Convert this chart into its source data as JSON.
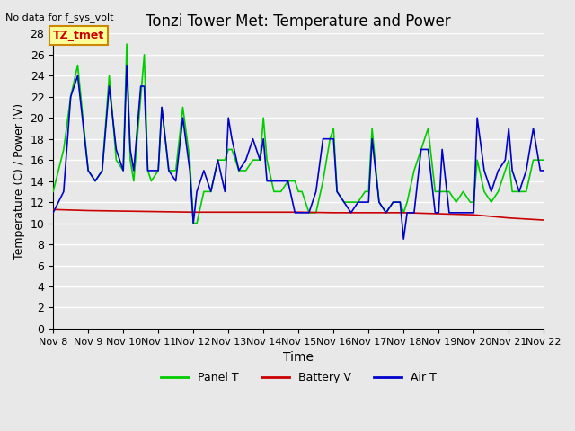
{
  "title": "Tonzi Tower Met: Temperature and Power",
  "top_left_text": "No data for f_sys_volt",
  "xlabel": "Time",
  "ylabel": "Temperature (C) / Power (V)",
  "ylim": [
    0,
    28
  ],
  "yticks": [
    0,
    2,
    4,
    6,
    8,
    10,
    12,
    14,
    16,
    18,
    20,
    22,
    24,
    26,
    28
  ],
  "xtick_labels": [
    "Nov 8",
    "Nov 9",
    "Nov 10",
    "Nov 11",
    "Nov 12",
    "Nov 13",
    "Nov 14",
    "Nov 15",
    "Nov 16",
    "Nov 17",
    "Nov 18",
    "Nov 19",
    "Nov 20",
    "Nov 21",
    "Nov 22"
  ],
  "background_color": "#e8e8e8",
  "plot_bg_color": "#e8e8e8",
  "grid_color": "#ffffff",
  "legend_label_box": "TZ_tmet",
  "legend_box_color": "#ffff99",
  "legend_box_border": "#cc8800",
  "line_panel_color": "#00cc00",
  "line_battery_color": "#cc0000",
  "line_air_color": "#0000cc",
  "line_width": 1.2,
  "panel_T_x": [
    8,
    8.3,
    8.5,
    8.7,
    9.0,
    9.2,
    9.4,
    9.6,
    9.8,
    10.0,
    10.1,
    10.2,
    10.3,
    10.5,
    10.6,
    10.7,
    10.8,
    11.0,
    11.1,
    11.3,
    11.5,
    11.7,
    11.9,
    12.0,
    12.1,
    12.3,
    12.5,
    12.7,
    12.9,
    13.0,
    13.1,
    13.3,
    13.5,
    13.7,
    13.9,
    14.0,
    14.1,
    14.3,
    14.5,
    14.7,
    14.9,
    15.0,
    15.1,
    15.3,
    15.5,
    15.7,
    15.9,
    16.0,
    16.1,
    16.3,
    16.5,
    16.7,
    16.9,
    17.0,
    17.1,
    17.3,
    17.5,
    17.7,
    17.9,
    18.0,
    18.1,
    18.3,
    18.5,
    18.7,
    18.9,
    19.0,
    19.1,
    19.3,
    19.5,
    19.7,
    19.9,
    20.0,
    20.1,
    20.3,
    20.5,
    20.7,
    20.9,
    21.0,
    21.1,
    21.3,
    21.5,
    21.7,
    21.9,
    22.0
  ],
  "panel_T_y": [
    13,
    17,
    22,
    25,
    15,
    14,
    15,
    24,
    16,
    15,
    27,
    16,
    14,
    22,
    26,
    15,
    14,
    15,
    21,
    15,
    15,
    21,
    16,
    10,
    10,
    13,
    13,
    16,
    16,
    17,
    17,
    15,
    15,
    16,
    16,
    20,
    16,
    13,
    13,
    14,
    14,
    13,
    13,
    11,
    11,
    14,
    18,
    19,
    13,
    12,
    12,
    12,
    13,
    13,
    19,
    12,
    11,
    12,
    12,
    11,
    12,
    15,
    17,
    19,
    13,
    13,
    13,
    13,
    12,
    13,
    12,
    12,
    16,
    13,
    12,
    13,
    15,
    16,
    13,
    13,
    13,
    16,
    16,
    16
  ],
  "air_T_x": [
    8,
    8.3,
    8.5,
    8.7,
    9.0,
    9.2,
    9.4,
    9.6,
    9.8,
    10.0,
    10.1,
    10.2,
    10.3,
    10.5,
    10.6,
    10.7,
    10.8,
    11.0,
    11.1,
    11.3,
    11.5,
    11.7,
    11.9,
    12.0,
    12.1,
    12.3,
    12.5,
    12.7,
    12.9,
    13.0,
    13.1,
    13.3,
    13.5,
    13.7,
    13.9,
    14.0,
    14.1,
    14.3,
    14.5,
    14.7,
    14.9,
    15.0,
    15.1,
    15.3,
    15.5,
    15.7,
    15.9,
    16.0,
    16.1,
    16.3,
    16.5,
    16.7,
    16.9,
    17.0,
    17.1,
    17.3,
    17.5,
    17.7,
    17.9,
    18.0,
    18.1,
    18.3,
    18.5,
    18.7,
    18.9,
    19.0,
    19.1,
    19.3,
    19.5,
    19.7,
    19.9,
    20.0,
    20.1,
    20.3,
    20.5,
    20.7,
    20.9,
    21.0,
    21.1,
    21.3,
    21.5,
    21.7,
    21.9,
    22.0
  ],
  "air_T_y": [
    11,
    13,
    22,
    24,
    15,
    14,
    15,
    23,
    17,
    15,
    25,
    17,
    15,
    23,
    23,
    15,
    15,
    15,
    21,
    15,
    14,
    20,
    15,
    10,
    13,
    15,
    13,
    16,
    13,
    20,
    18,
    15,
    16,
    18,
    16,
    18,
    14,
    14,
    14,
    14,
    11,
    11,
    11,
    11,
    13,
    18,
    18,
    18,
    13,
    12,
    11,
    12,
    12,
    12,
    18,
    12,
    11,
    12,
    12,
    8.5,
    11,
    11,
    17,
    17,
    11,
    11,
    17,
    11,
    11,
    11,
    11,
    11,
    20,
    15,
    13,
    15,
    16,
    19,
    15,
    13,
    15,
    19,
    15,
    15
  ],
  "battery_x": [
    8,
    9,
    10,
    11,
    12,
    13,
    14,
    15,
    16,
    17,
    18,
    19,
    20,
    21,
    22
  ],
  "battery_y": [
    11.3,
    11.2,
    11.15,
    11.1,
    11.05,
    11.05,
    11.05,
    11.05,
    11.0,
    11.0,
    11.0,
    10.9,
    10.8,
    10.5,
    10.3
  ]
}
